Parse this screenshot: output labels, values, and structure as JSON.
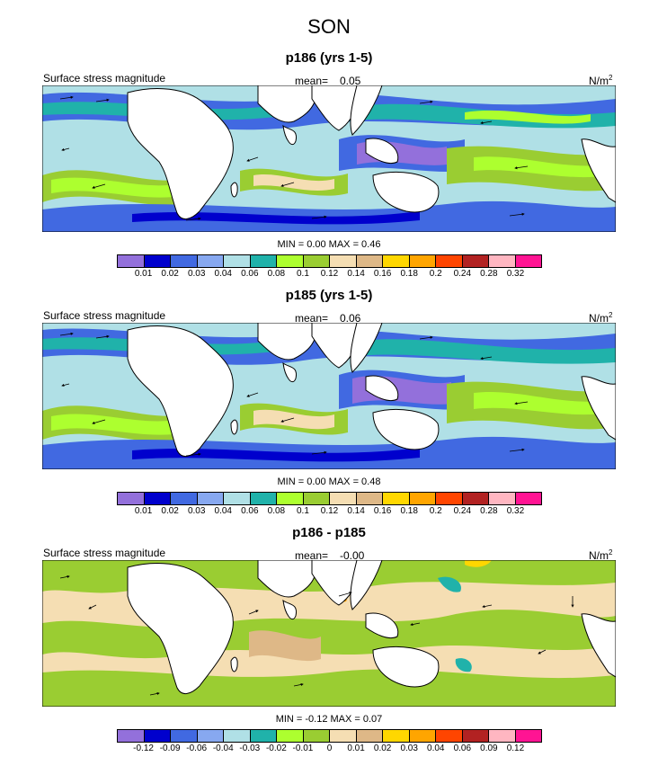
{
  "title": "SON",
  "legend_colors": [
    "#9370db",
    "#0000cd",
    "#4169e1",
    "#87a8f0",
    "#b0e0e6",
    "#20b2aa",
    "#adff2f",
    "#9acd32",
    "#f5deb3",
    "#deb887",
    "#ffd700",
    "#ffa500",
    "#ff4500",
    "#b22222",
    "#ffb6c1",
    "#ff1493"
  ],
  "panels": [
    {
      "title": "p186 (yrs 1-5)",
      "left_label": "Surface stress magnitude",
      "mean_label": "mean=",
      "mean_value": "0.05",
      "unit": "N/m",
      "unit_sup": "2",
      "minmax": "MIN =  0.00 MAX =  0.46",
      "ticks": [
        "0.01",
        "0.02",
        "0.03",
        "0.04",
        "0.06",
        "0.08",
        "0.1",
        "0.12",
        "0.14",
        "0.16",
        "0.18",
        "0.2",
        "0.24",
        "0.28",
        "0.32"
      ]
    },
    {
      "title": "p185 (yrs 1-5)",
      "left_label": "Surface stress magnitude",
      "mean_label": "mean=",
      "mean_value": "0.06",
      "unit": "N/m",
      "unit_sup": "2",
      "minmax": "MIN =  0.00 MAX =  0.48",
      "ticks": [
        "0.01",
        "0.02",
        "0.03",
        "0.04",
        "0.06",
        "0.08",
        "0.1",
        "0.12",
        "0.14",
        "0.16",
        "0.18",
        "0.2",
        "0.24",
        "0.28",
        "0.32"
      ]
    },
    {
      "title": "p186 - p185",
      "left_label": "Surface stress magnitude",
      "mean_label": "mean=",
      "mean_value": "-0.00",
      "unit": "N/m",
      "unit_sup": "2",
      "minmax": "MIN = -0.12 MAX =  0.07",
      "ticks": [
        "-0.12",
        "-0.09",
        "-0.06",
        "-0.04",
        "-0.03",
        "-0.02",
        "-0.01",
        "0",
        "0.01",
        "0.02",
        "0.03",
        "0.04",
        "0.06",
        "0.09",
        "0.12"
      ]
    }
  ]
}
